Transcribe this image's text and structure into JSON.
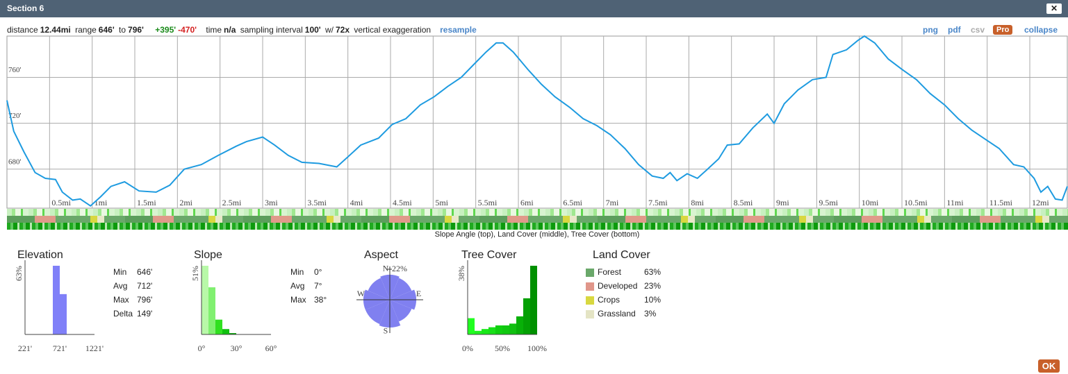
{
  "window": {
    "title": "Section 6",
    "close": "✕",
    "ok": "OK"
  },
  "info": {
    "distance_label": "distance",
    "distance": "12.44mi",
    "range_label": "range",
    "range_min": "646'",
    "to": "to",
    "range_max": "796'",
    "gain": "+395'",
    "loss": "-470'",
    "time_label": "time",
    "time": "n/a",
    "interval_label": "sampling interval",
    "interval": "100'",
    "w": "w/",
    "exaggeration": "72x",
    "exaggeration_label": "vertical exaggeration",
    "resample": "resample"
  },
  "toolbar": [
    "png",
    "pdf",
    "csv",
    "Pro",
    "collapse"
  ],
  "chart_data": [
    {
      "type": "line",
      "color": "#1e9be0",
      "grid": true,
      "x": [
        0,
        0.08,
        0.2,
        0.33,
        0.45,
        0.57,
        0.65,
        0.77,
        0.86,
        0.98,
        1.1,
        1.22,
        1.38,
        1.55,
        1.75,
        1.91,
        2.08,
        2.28,
        2.48,
        2.69,
        2.81,
        3.0,
        3.14,
        3.3,
        3.46,
        3.66,
        3.87,
        3.99,
        4.15,
        4.36,
        4.52,
        4.68,
        4.85,
        5.01,
        5.17,
        5.33,
        5.5,
        5.62,
        5.74,
        5.82,
        5.94,
        6.11,
        6.27,
        6.43,
        6.6,
        6.76,
        6.92,
        7.08,
        7.25,
        7.41,
        7.57,
        7.7,
        7.78,
        7.86,
        7.98,
        8.1,
        8.22,
        8.35,
        8.45,
        8.59,
        8.75,
        8.92,
        9.0,
        9.12,
        9.28,
        9.45,
        9.61,
        9.69,
        9.85,
        9.98,
        10.06,
        10.18,
        10.34,
        10.5,
        10.67,
        10.83,
        11.0,
        11.16,
        11.32,
        11.48,
        11.64,
        11.81,
        11.93,
        12.05,
        12.13,
        12.21,
        12.3,
        12.38,
        12.44
      ],
      "values": [
        740,
        713,
        695,
        677,
        672,
        671,
        660,
        653,
        654,
        648,
        656,
        665,
        669,
        661,
        660,
        666,
        680,
        684,
        692,
        700,
        704,
        708,
        701,
        692,
        686,
        685,
        682,
        690,
        701,
        707,
        719,
        724,
        736,
        743,
        752,
        760,
        773,
        782,
        790,
        790,
        782,
        767,
        754,
        743,
        734,
        724,
        718,
        710,
        698,
        684,
        674,
        672,
        677,
        670,
        676,
        672,
        680,
        689,
        701,
        702,
        716,
        728,
        720,
        737,
        749,
        758,
        760,
        780,
        784,
        792,
        796,
        790,
        776,
        767,
        758,
        746,
        736,
        724,
        714,
        706,
        698,
        684,
        682,
        672,
        660,
        665,
        654,
        653,
        665
      ],
      "xlim": [
        0,
        12.44
      ],
      "ylim": [
        646,
        796
      ],
      "xticks": [
        {
          "value": 0.5,
          "label": "0.5mi"
        },
        {
          "value": 1,
          "label": "1mi"
        },
        {
          "value": 1.5,
          "label": "1.5mi"
        },
        {
          "value": 2,
          "label": "2mi"
        },
        {
          "value": 2.5,
          "label": "2.5mi"
        },
        {
          "value": 3,
          "label": "3mi"
        },
        {
          "value": 3.5,
          "label": "3.5mi"
        },
        {
          "value": 4,
          "label": "4mi"
        },
        {
          "value": 4.5,
          "label": "4.5mi"
        },
        {
          "value": 5,
          "label": "5mi"
        },
        {
          "value": 5.5,
          "label": "5.5mi"
        },
        {
          "value": 6,
          "label": "6mi"
        },
        {
          "value": 6.5,
          "label": "6.5mi"
        },
        {
          "value": 7,
          "label": "7mi"
        },
        {
          "value": 7.5,
          "label": "7.5mi"
        },
        {
          "value": 8,
          "label": "8mi"
        },
        {
          "value": 8.5,
          "label": "8.5mi"
        },
        {
          "value": 9,
          "label": "9mi"
        },
        {
          "value": 9.5,
          "label": "9.5mi"
        },
        {
          "value": 10,
          "label": "10mi"
        },
        {
          "value": 10.5,
          "label": "10.5mi"
        },
        {
          "value": 11,
          "label": "11mi"
        },
        {
          "value": 11.5,
          "label": "11.5mi"
        },
        {
          "value": 12,
          "label": "12mi"
        }
      ],
      "yticks": [
        {
          "value": 680,
          "label": "680'"
        },
        {
          "value": 720,
          "label": "720'"
        },
        {
          "value": 760,
          "label": "760'"
        }
      ],
      "caption": "Slope Angle (top), Land Cover (middle), Tree Cover (bottom)"
    },
    {
      "type": "histogram",
      "title": "Elevation",
      "bins": [
        621,
        721,
        821
      ],
      "values": [
        63,
        37
      ],
      "color": "#8080f8",
      "xlim": [
        221,
        1221
      ],
      "xticks": [
        {
          "value": 221,
          "label": "221'"
        },
        {
          "value": 721,
          "label": "721'"
        },
        {
          "value": 1221,
          "label": "1221'"
        }
      ],
      "ylim": [
        0,
        63
      ],
      "yticks": [
        {
          "value": 63,
          "label": "63%"
        }
      ],
      "stats": [
        {
          "label": "Min",
          "value": "646'"
        },
        {
          "label": "Avg",
          "value": "712'"
        },
        {
          "label": "Max",
          "value": "796'"
        },
        {
          "label": "Delta",
          "value": "149'"
        }
      ]
    },
    {
      "type": "histogram",
      "title": "Slope",
      "bins": [
        0,
        6,
        12,
        18,
        24,
        30
      ],
      "values": [
        51,
        35,
        11,
        4,
        1
      ],
      "colors": [
        "#b8f8a8",
        "#80f070",
        "#30e020",
        "#10c010",
        "#08a008"
      ],
      "xlim": [
        0,
        60
      ],
      "xticks": [
        {
          "value": 0,
          "label": "0°"
        },
        {
          "value": 30,
          "label": "30°"
        },
        {
          "value": 60,
          "label": "60°"
        }
      ],
      "ylim": [
        0,
        51
      ],
      "yticks": [
        {
          "value": 51,
          "label": "51%"
        }
      ],
      "stats": [
        {
          "label": "Min",
          "value": "0°"
        },
        {
          "label": "Avg",
          "value": "7°"
        },
        {
          "label": "Max",
          "value": "38°"
        }
      ]
    },
    {
      "type": "rose",
      "title": "Aspect",
      "categories": [
        "N",
        null,
        "E",
        null,
        "S",
        null,
        "W",
        null
      ],
      "values": [
        18,
        17,
        19,
        17,
        20,
        19,
        19,
        17
      ],
      "color": "#8080f0",
      "rlim": [
        0,
        22
      ],
      "rticks": [
        {
          "value": 22,
          "label": "22%"
        }
      ]
    },
    {
      "type": "histogram",
      "title": "Tree Cover",
      "bins": [
        0,
        10,
        20,
        30,
        40,
        50,
        60,
        70,
        80,
        90,
        100
      ],
      "values": [
        9,
        2,
        3,
        4,
        5,
        5,
        6,
        10,
        20,
        38
      ],
      "colors": [
        "#20ff20",
        "#20f020",
        "#18e818",
        "#18e018",
        "#10d010",
        "#10c810",
        "#10c010",
        "#08b008",
        "#04a004",
        "#009000"
      ],
      "xlim": [
        0,
        100
      ],
      "xticks": [
        {
          "value": 0,
          "label": "0%"
        },
        {
          "value": 50,
          "label": "50%"
        },
        {
          "value": 100,
          "label": "100%"
        }
      ],
      "ylim": [
        0,
        38
      ],
      "yticks": [
        {
          "value": 38,
          "label": "38%"
        }
      ]
    },
    {
      "type": "legend",
      "title": "Land Cover",
      "categories": [
        "Forest",
        "Developed",
        "Crops",
        "Grassland"
      ],
      "values": [
        63,
        23,
        10,
        3
      ],
      "value_labels": [
        "63%",
        "23%",
        "10%",
        "3%"
      ],
      "colors": [
        "#6aa86a",
        "#e0968a",
        "#d8d840",
        "#e4e4c4"
      ]
    }
  ]
}
